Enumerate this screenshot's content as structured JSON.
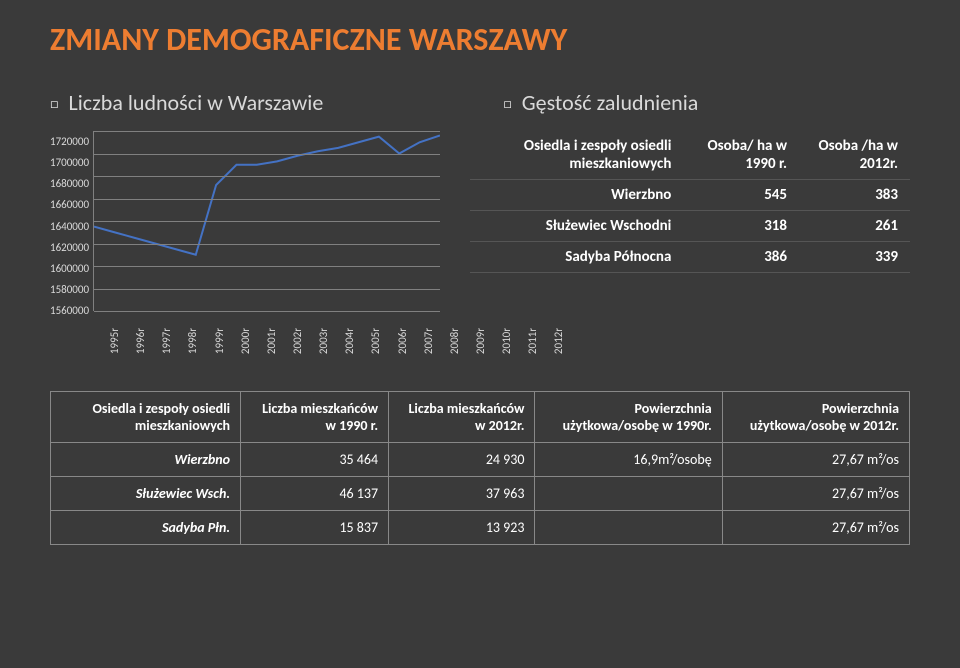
{
  "title": "ZMIANY DEMOGRAFICZNE WARSZAWY",
  "sub_left": "Liczba ludności w Warszawie",
  "sub_right": "Gęstość zaludnienia",
  "chart": {
    "type": "line",
    "ylim": [
      1560000,
      1720000
    ],
    "ytick_step": 20000,
    "yticks": [
      "1720000",
      "1700000",
      "1680000",
      "1660000",
      "1640000",
      "1620000",
      "1600000",
      "1580000",
      "1560000"
    ],
    "xlabels": [
      "1995r",
      "1996r",
      "1997r",
      "1998r",
      "1999r",
      "2000r",
      "2001r",
      "2002r",
      "2003r",
      "2004r",
      "2005r",
      "2006r",
      "2007r",
      "2008r",
      "2009r",
      "2010r",
      "2011r",
      "2012r"
    ],
    "values": [
      1635000,
      1630000,
      1625000,
      1620000,
      1615000,
      1610000,
      1672000,
      1690000,
      1690000,
      1693000,
      1698000,
      1702000,
      1705000,
      1710000,
      1715000,
      1700000,
      1710000,
      1716000
    ],
    "line_color": "#4472c4",
    "line_width": 2,
    "grid_color": "#808080",
    "text_color": "#d9d9d9",
    "background_color": "#3a3a3a"
  },
  "density": {
    "headers": {
      "col0": "Osiedla i zespoły osiedli mieszkaniowych",
      "col1": "Osoba/\nha w 1990 r.",
      "col2": "Osoba\n/ha w 2012r."
    },
    "rows": [
      {
        "name": "Wierzbno",
        "c1": "545",
        "c2": "383"
      },
      {
        "name": "Służewiec Wschodni",
        "c1": "318",
        "c2": "261"
      },
      {
        "name": "Sadyba Północna",
        "c1": "386",
        "c2": "339"
      }
    ]
  },
  "big": {
    "headers": {
      "c0": "Osiedla i zespoły osiedli mieszkaniowych",
      "c1": "Liczba mieszkańców w 1990 r.",
      "c2": "Liczba mieszkańców w 2012r.",
      "c3": "Powierzchnia użytkowa/osobę w 1990r.",
      "c4": "Powierzchnia użytkowa/osobę w 2012r."
    },
    "rows": [
      {
        "name": "Wierzbno",
        "c1": "35 464",
        "c2": "24 930",
        "c3": "16,9m²/osobę",
        "c4": "27,67 m²/os"
      },
      {
        "name": "Służewiec Wsch.",
        "c1": "46 137",
        "c2": "37 963",
        "c3": "",
        "c4": "27,67 m²/os"
      },
      {
        "name": "Sadyba Płn.",
        "c1": "15 837",
        "c2": "13 923",
        "c3": "",
        "c4": "27,67 m²/os"
      }
    ]
  }
}
